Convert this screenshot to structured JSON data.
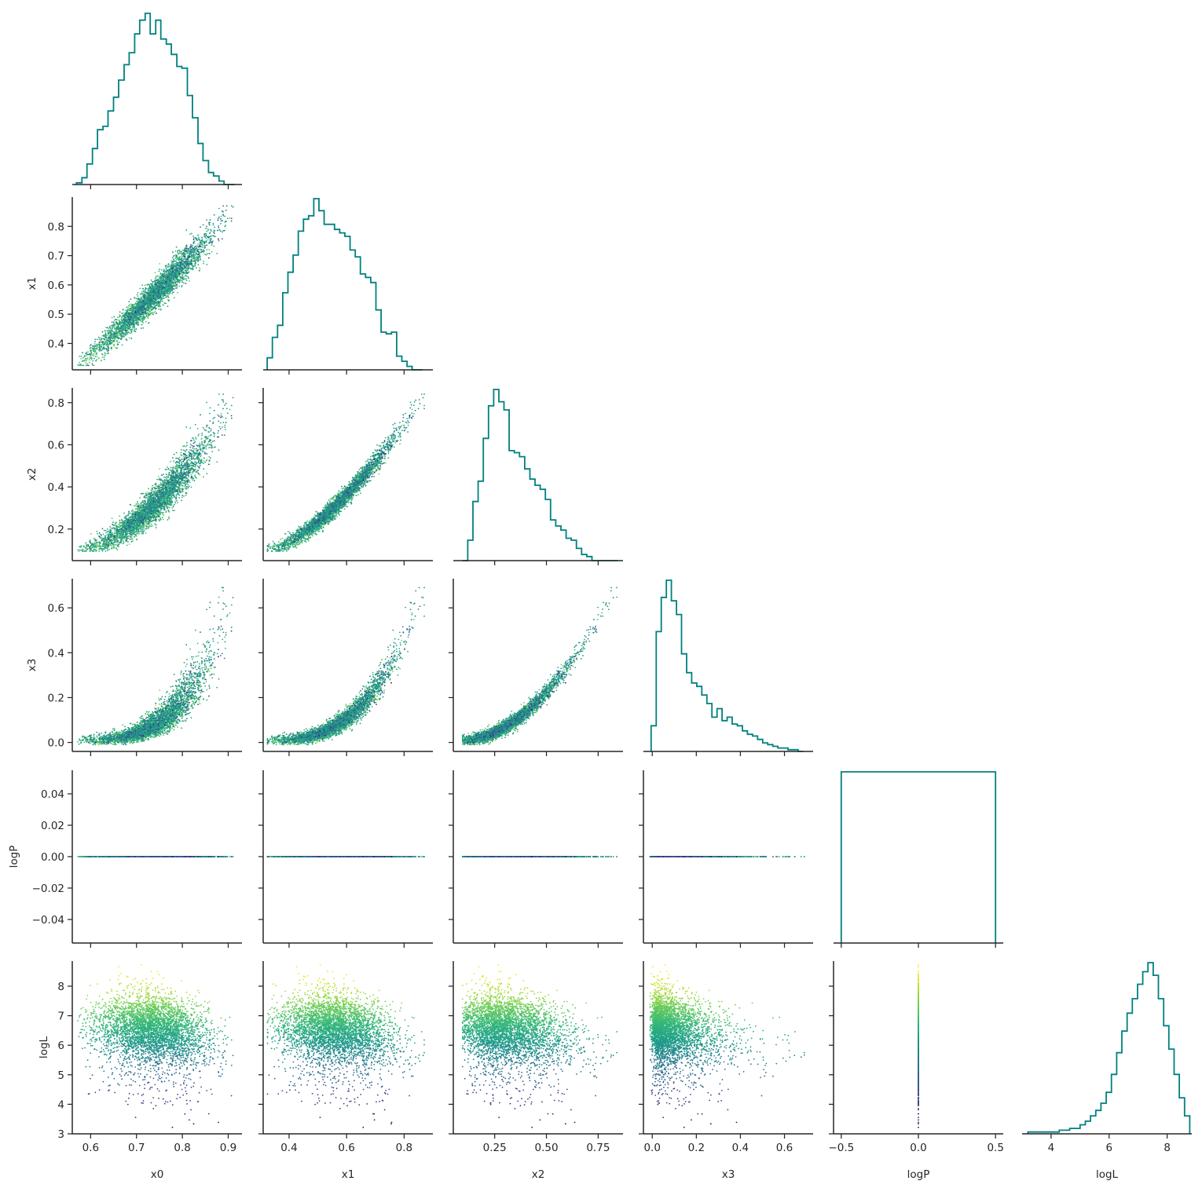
{
  "chart_data": {
    "type": "corner",
    "variables": [
      "x0",
      "x1",
      "x2",
      "x3",
      "logP",
      "logL"
    ],
    "xlabels": [
      "x0",
      "x1",
      "x2",
      "x3",
      "logP",
      "logL"
    ],
    "ylabels": [
      "",
      "x1",
      "x2",
      "x3",
      "logP",
      "logL"
    ],
    "ranges": {
      "x0": [
        0.56,
        0.93
      ],
      "x1": [
        0.31,
        0.9
      ],
      "x2": [
        0.05,
        0.87
      ],
      "x3": [
        -0.04,
        0.73
      ],
      "logP": [
        -0.055,
        0.055
      ],
      "logL": [
        3.0,
        8.85
      ]
    },
    "ticks": {
      "x0": [
        0.6,
        0.7,
        0.8,
        0.9
      ],
      "x1": [
        0.4,
        0.5,
        0.6,
        0.7,
        0.8
      ],
      "x2": [
        0.2,
        0.4,
        0.6,
        0.8
      ],
      "x3": [
        0.0,
        0.2,
        0.4,
        0.6
      ],
      "logP": [
        -0.04,
        -0.02,
        0.0,
        0.02,
        0.04
      ],
      "logL": [
        3,
        4,
        5,
        6,
        7,
        8
      ]
    },
    "x_ticks": {
      "x0": [
        0.6,
        0.7,
        0.8,
        0.9
      ],
      "x1": [
        0.4,
        0.6,
        0.8
      ],
      "x2": [
        0.25,
        0.5,
        0.75
      ],
      "x3": [
        0.0,
        0.2,
        0.4,
        0.6
      ],
      "logP": [
        -0.5,
        0.0,
        0.5
      ],
      "logL": [
        4,
        6,
        8
      ]
    },
    "tick_labels": {
      "x0": [
        "0.6",
        "0.7",
        "0.8",
        "0.9"
      ],
      "x1": [
        "0.4",
        "0.5",
        "0.6",
        "0.7",
        "0.8"
      ],
      "x2": [
        "0.2",
        "0.4",
        "0.6",
        "0.8"
      ],
      "x3": [
        "0.0",
        "0.2",
        "0.4",
        "0.6"
      ],
      "logP": [
        "−0.04",
        "−0.02",
        "0.00",
        "0.02",
        "0.04"
      ],
      "logL": [
        "3",
        "4",
        "5",
        "6",
        "7",
        "8"
      ]
    },
    "x_tick_labels": {
      "x0": [
        "0.6",
        "0.7",
        "0.8",
        "0.9"
      ],
      "x1": [
        "0.4",
        "0.6",
        "0.8"
      ],
      "x2": [
        "0.25",
        "0.50",
        "0.75"
      ],
      "x3": [
        "0.0",
        "0.2",
        "0.4",
        "0.6"
      ],
      "logP": [
        "−0.5",
        "0.0",
        "0.5"
      ],
      "logL": [
        "4",
        "6",
        "8"
      ]
    },
    "logP_hist_xrange": [
      -0.55,
      0.55
    ],
    "histograms": {
      "x0": {
        "edges": [
          0.569,
          0.581,
          0.592,
          0.604,
          0.615,
          0.627,
          0.638,
          0.65,
          0.661,
          0.673,
          0.684,
          0.696,
          0.707,
          0.719,
          0.73,
          0.742,
          0.753,
          0.765,
          0.776,
          0.788,
          0.799,
          0.811,
          0.822,
          0.834,
          0.845,
          0.857,
          0.868,
          0.88,
          0.891,
          0.903,
          0.914
        ],
        "counts": [
          1,
          4,
          12,
          21,
          32,
          34,
          43,
          51,
          61,
          70,
          77,
          88,
          96,
          100,
          88,
          96,
          85,
          82,
          76,
          69,
          68,
          52,
          39,
          24,
          14,
          7,
          5,
          2,
          0,
          0
        ]
      },
      "x1": {
        "edges": [
          0.324,
          0.342,
          0.36,
          0.378,
          0.396,
          0.414,
          0.432,
          0.45,
          0.468,
          0.486,
          0.504,
          0.522,
          0.54,
          0.558,
          0.576,
          0.594,
          0.612,
          0.63,
          0.648,
          0.666,
          0.684,
          0.702,
          0.72,
          0.738,
          0.756,
          0.774,
          0.792,
          0.81,
          0.828,
          0.846,
          0.864
        ],
        "counts": [
          7,
          19,
          26,
          45,
          57,
          67,
          81,
          88,
          90,
          100,
          93,
          85,
          85,
          82,
          80,
          78,
          70,
          66,
          56,
          54,
          51,
          35,
          22,
          21,
          22,
          8,
          5,
          2,
          0,
          0
        ]
      },
      "x2": {
        "edges": [
          0.095,
          0.12,
          0.145,
          0.17,
          0.195,
          0.22,
          0.245,
          0.27,
          0.295,
          0.32,
          0.345,
          0.37,
          0.395,
          0.42,
          0.445,
          0.47,
          0.495,
          0.52,
          0.545,
          0.57,
          0.595,
          0.62,
          0.645,
          0.67,
          0.695,
          0.72,
          0.745,
          0.77,
          0.795,
          0.82,
          0.845
        ],
        "counts": [
          0,
          10,
          29,
          39,
          60,
          76,
          84,
          78,
          74,
          54,
          53,
          51,
          45,
          40,
          37,
          35,
          30,
          20,
          17,
          15,
          11,
          10,
          6,
          3,
          2,
          0,
          0,
          0,
          0,
          0
        ]
      },
      "x3": {
        "edges": [
          -0.005,
          0.018,
          0.041,
          0.064,
          0.087,
          0.11,
          0.133,
          0.156,
          0.179,
          0.202,
          0.225,
          0.248,
          0.271,
          0.294,
          0.317,
          0.34,
          0.363,
          0.386,
          0.409,
          0.432,
          0.455,
          0.478,
          0.501,
          0.524,
          0.547,
          0.57,
          0.593,
          0.616,
          0.639,
          0.662,
          0.685
        ],
        "counts": [
          15,
          70,
          90,
          100,
          88,
          80,
          57,
          46,
          40,
          38,
          33,
          28,
          20,
          25,
          18,
          20,
          16,
          15,
          12,
          10,
          9,
          7,
          5,
          4,
          3,
          2,
          2,
          1,
          1,
          0
        ]
      },
      "logP": {
        "edges": [
          -0.5,
          0.5
        ],
        "counts": [
          100
        ]
      },
      "logL": {
        "edges": [
          3.2,
          3.38,
          3.56,
          3.74,
          3.92,
          4.1,
          4.28,
          4.46,
          4.64,
          4.82,
          5.0,
          5.18,
          5.36,
          5.54,
          5.72,
          5.9,
          6.08,
          6.26,
          6.44,
          6.62,
          6.8,
          6.98,
          7.16,
          7.34,
          7.52,
          7.7,
          7.88,
          8.06,
          8.24,
          8.42,
          8.6,
          8.78
        ],
        "counts": [
          1,
          1,
          1,
          1,
          1,
          1,
          2,
          2,
          3,
          3,
          5,
          7,
          10,
          13,
          17,
          23,
          33,
          45,
          57,
          67,
          75,
          83,
          90,
          95,
          88,
          75,
          60,
          47,
          33,
          20,
          10
        ]
      }
    },
    "scatter": {
      "color_by": "logL",
      "colormap": "viridis",
      "point_count": 4000
    }
  },
  "colors": {
    "histogram_line": "#008080",
    "axis": "#262626",
    "background": "#ffffff"
  }
}
